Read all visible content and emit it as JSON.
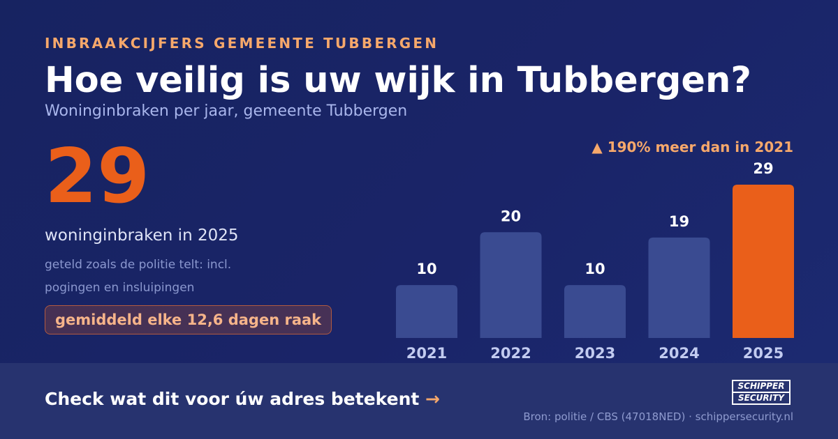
{
  "header": {
    "eyebrow": "INBRAAKCIJFERS GEMEENTE TUBBERGEN",
    "title": "Hoe veilig is uw wijk in Tubbergen?",
    "subtitle": "Woninginbraken per jaar, gemeente Tubbergen"
  },
  "highlight": {
    "value": "29",
    "caption": "woninginbraken in 2025",
    "note": "geteld zoals de politie telt: incl. pogingen en insluipingen",
    "pill": "gemiddeld elke 12,6 dagen raak"
  },
  "growth_label": "▲ 190% meer dan in 2021",
  "colors": {
    "background": "#1a2468",
    "bar": "#3a4b91",
    "bar_highlight": "#ea5f1a",
    "accent": "#f6a86b"
  },
  "chart_data": {
    "type": "bar",
    "categories": [
      "2021",
      "2022",
      "2023",
      "2024",
      "2025"
    ],
    "values": [
      10,
      20,
      10,
      19,
      29
    ],
    "highlighted_category": "2025",
    "title": "",
    "xlabel": "",
    "ylabel": "",
    "ylim": [
      0,
      29
    ],
    "grid": false,
    "legend": "none"
  },
  "footer": {
    "cta": "Check wat dit voor úw adres betekent",
    "cta_arrow": "→",
    "logo_line1": "SCHIPPER",
    "logo_line2": "SECURITY",
    "source": "Bron: politie / CBS (47018NED) · schippersecurity.nl"
  }
}
